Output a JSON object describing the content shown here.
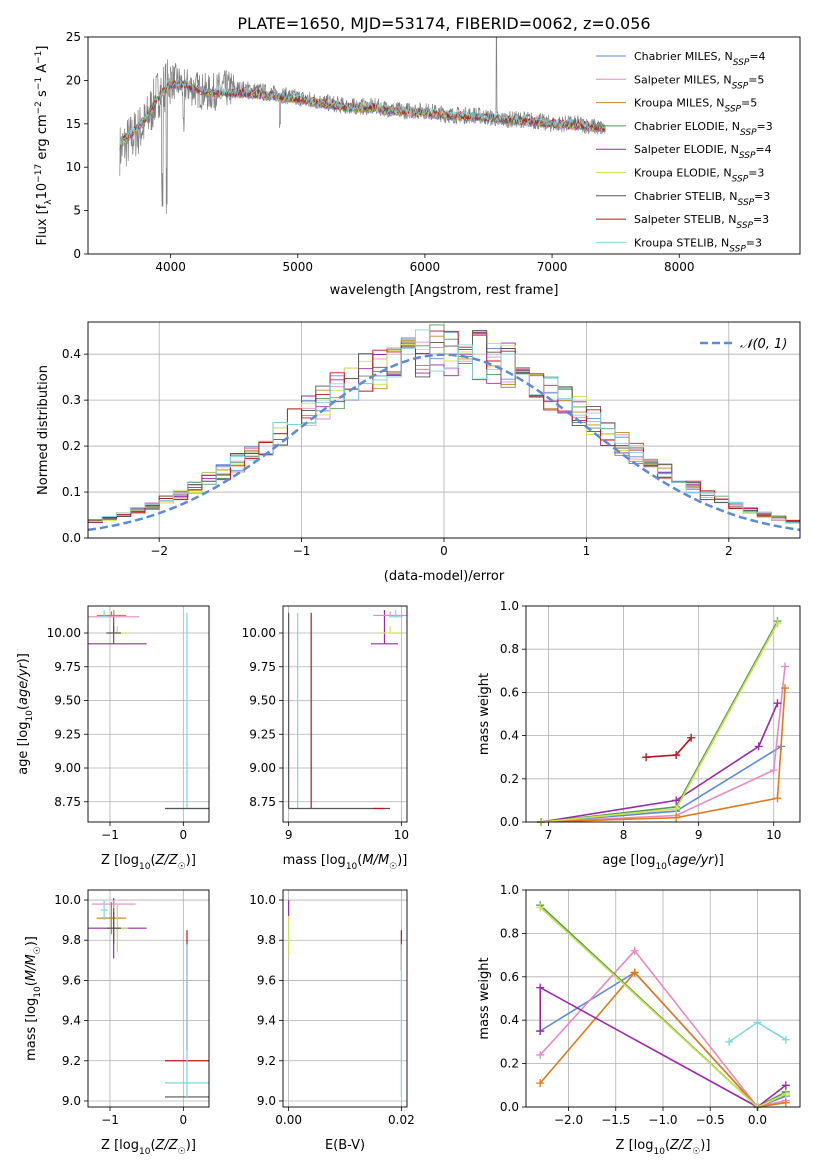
{
  "chart_data": [
    {
      "id": "spectrum",
      "type": "line",
      "title": "PLATE=1650, MJD=53174, FIBERID=0062, z=0.056",
      "xlabel": "wavelength [Angstrom, rest frame]",
      "ylabel": "Flux [f_λ10^-17 erg cm^-2 s^-1 A^-1]",
      "xlim": [
        3350,
        8950
      ],
      "ylim": [
        0,
        25
      ],
      "xticks": [
        4000,
        5000,
        6000,
        7000,
        8000
      ],
      "yticks": [
        0,
        5,
        10,
        15,
        20,
        25
      ],
      "grid": false,
      "legend_position": "top-right",
      "data_color": "#808080",
      "data_x": [
        3600,
        3700,
        3800,
        3900,
        4000,
        4100,
        4200,
        4300,
        4400,
        4600,
        4800,
        5000,
        5200,
        5400,
        5600,
        5800,
        6000,
        6200,
        6400,
        6600,
        6800,
        7000,
        7200,
        7400
      ],
      "data_y": [
        12,
        13.5,
        15,
        18.5,
        20,
        19.5,
        19,
        18.5,
        19,
        19,
        18.5,
        18,
        17.5,
        17,
        17,
        16.5,
        16.5,
        16,
        16,
        15.5,
        15.5,
        15,
        15,
        14.5
      ],
      "series": [
        {
          "name": "Chabrier MILES, N",
          "sub": "SSP",
          "eq": "=4",
          "color": "#5b8bd8"
        },
        {
          "name": "Salpeter MILES, N",
          "sub": "SSP",
          "eq": "=5",
          "color": "#e88ac2"
        },
        {
          "name": "Kroupa MILES, N",
          "sub": "SSP",
          "eq": "=5",
          "color": "#c48a1d"
        },
        {
          "name": "Chabrier ELODIE, N",
          "sub": "SSP",
          "eq": "=3",
          "color": "#559955"
        },
        {
          "name": "Salpeter ELODIE, N",
          "sub": "SSP",
          "eq": "=4",
          "color": "#9a2aa8"
        },
        {
          "name": "Kroupa ELODIE, N",
          "sub": "SSP",
          "eq": "=3",
          "color": "#cbe34d"
        },
        {
          "name": "Chabrier STELIB, N",
          "sub": "SSP",
          "eq": "=3",
          "color": "#555555"
        },
        {
          "name": "Salpeter STELIB, N",
          "sub": "SSP",
          "eq": "=3",
          "color": "#c0141a"
        },
        {
          "name": "Kroupa STELIB, N",
          "sub": "SSP",
          "eq": "=3",
          "color": "#7fd6e0"
        }
      ],
      "model_x": [
        3600,
        3700,
        3800,
        3900,
        4000,
        4100,
        4200,
        4300,
        4400,
        4600,
        4800,
        5000,
        5200,
        5400,
        5600,
        5800,
        6000,
        6200,
        6400,
        6600,
        6800,
        7000,
        7200,
        7400
      ],
      "model_y": [
        12.5,
        14,
        15.5,
        18,
        19.5,
        19.5,
        19,
        18.5,
        18.5,
        18.5,
        18.2,
        17.8,
        17.3,
        16.8,
        16.8,
        16.4,
        16.3,
        15.9,
        15.8,
        15.5,
        15.3,
        15,
        14.8,
        14.5
      ]
    },
    {
      "id": "residuals",
      "type": "step",
      "xlabel": "(data-model)/error",
      "ylabel": "Normed distribution",
      "xlim": [
        -2.5,
        2.5
      ],
      "ylim": [
        0,
        0.47
      ],
      "xticks": [
        -2,
        -1,
        0,
        1,
        2
      ],
      "yticks": [
        0.0,
        0.1,
        0.2,
        0.3,
        0.4
      ],
      "grid": true,
      "legend_position": "top-right",
      "legend": "𝒩(0, 1)",
      "gaussian": {
        "mean": 0,
        "sigma": 1,
        "color": "#5b8bd8"
      },
      "bin_width": 0.1
    },
    {
      "id": "age-vs-Z",
      "type": "errorbar",
      "xlabel": "Z [log10(Z/Z☉)]",
      "ylabel": "age [log10(age/yr)]",
      "xlim": [
        -1.3,
        0.35
      ],
      "ylim": [
        8.6,
        10.2
      ],
      "xticks": [
        -1,
        0
      ],
      "yticks": [
        8.75,
        9.0,
        9.25,
        9.5,
        9.75,
        10.0
      ],
      "grid": true,
      "points": [
        {
          "x": -0.95,
          "y": 9.92,
          "xerr": 0.45,
          "yerr": 0.25,
          "color": "#9a2aa8"
        },
        {
          "x": -0.95,
          "y": 10.12,
          "xerr": 0.35,
          "yerr": 0.05,
          "color": "#e88ac2"
        },
        {
          "x": -0.98,
          "y": 10.13,
          "xerr": 0.2,
          "yerr": 0.03,
          "color": "#c48a1d"
        },
        {
          "x": -0.9,
          "y": 10.0,
          "xerr": 0.15,
          "yerr": 0.05,
          "color": "#cbe34d"
        },
        {
          "x": -0.95,
          "y": 10.0,
          "xerr": 0.1,
          "yerr": 0.05,
          "color": "#555555"
        },
        {
          "x": -1.08,
          "y": 10.12,
          "xerr": 0.05,
          "yerr": 0.05,
          "color": "#7fd6e0"
        },
        {
          "x": 0.05,
          "y": 8.7,
          "xerr": 0.3,
          "yerr": 1.45,
          "color": "#7fd6e0"
        },
        {
          "x": 0.05,
          "y": 8.7,
          "xerr": 0.3,
          "yerr": 0.0,
          "color": "#555555"
        }
      ]
    },
    {
      "id": "age-vs-mass",
      "type": "errorbar",
      "xlabel": "mass [log10(M/M☉)]",
      "ylabel": "",
      "xlim": [
        8.95,
        10.05
      ],
      "ylim": [
        8.6,
        10.2
      ],
      "xticks": [
        9,
        10
      ],
      "yticks": [
        8.75,
        9.0,
        9.25,
        9.5,
        9.75,
        10.0
      ],
      "grid": true,
      "points": [
        {
          "x": 9.0,
          "y": 8.7,
          "xerr": 0.0,
          "yerr": 1.45,
          "color": "#555555"
        },
        {
          "x": 9.08,
          "y": 8.7,
          "xerr": 0.0,
          "yerr": 1.45,
          "color": "#7fd6e0"
        },
        {
          "x": 9.2,
          "y": 8.7,
          "xerr": 0.0,
          "yerr": 1.45,
          "color": "#c0141a"
        },
        {
          "x": 9.45,
          "y": 8.7,
          "xerr": 0.45,
          "yerr": 0.0,
          "color": "#555555"
        },
        {
          "x": 9.8,
          "y": 8.7,
          "xerr": 0.05,
          "yerr": 0.0,
          "color": "#c0141a"
        },
        {
          "x": 9.85,
          "y": 9.92,
          "xerr": 0.12,
          "yerr": 0.25,
          "color": "#9a2aa8"
        },
        {
          "x": 9.9,
          "y": 10.13,
          "xerr": 0.15,
          "yerr": 0.03,
          "color": "#e88ac2"
        },
        {
          "x": 9.9,
          "y": 10.0,
          "xerr": 0.1,
          "yerr": 0.05,
          "color": "#cbe34d"
        },
        {
          "x": 9.95,
          "y": 10.12,
          "xerr": 0.06,
          "yerr": 0.05,
          "color": "#7fd6e0"
        }
      ]
    },
    {
      "id": "mass-weight-vs-age",
      "type": "line",
      "xlabel": "age [log10(age/yr)]",
      "ylabel": "mass weight",
      "xlim": [
        6.7,
        10.35
      ],
      "ylim": [
        0,
        1.0
      ],
      "xticks": [
        7,
        8,
        9,
        10
      ],
      "yticks": [
        0.0,
        0.2,
        0.4,
        0.6,
        0.8,
        1.0
      ],
      "grid": true,
      "series": [
        {
          "color": "#5b8bd8",
          "x": [
            6.9,
            8.7,
            10.1
          ],
          "y": [
            0.0,
            0.05,
            0.35
          ]
        },
        {
          "color": "#e88ac2",
          "x": [
            6.9,
            8.7,
            10.0,
            10.15
          ],
          "y": [
            0.0,
            0.03,
            0.24,
            0.72
          ]
        },
        {
          "color": "#e07b1d",
          "x": [
            6.9,
            8.7,
            10.05,
            10.15
          ],
          "y": [
            0.0,
            0.02,
            0.11,
            0.62
          ]
        },
        {
          "color": "#559955",
          "x": [
            6.9,
            8.7,
            10.05
          ],
          "y": [
            0.0,
            0.07,
            0.93
          ]
        },
        {
          "color": "#9a2aa8",
          "x": [
            6.9,
            8.7,
            9.8,
            10.05
          ],
          "y": [
            0.0,
            0.1,
            0.35,
            0.55
          ]
        },
        {
          "color": "#cbe34d",
          "x": [
            6.9,
            8.7,
            10.05
          ],
          "y": [
            0.0,
            0.06,
            0.92
          ]
        },
        {
          "color": "#7fd6e0",
          "x": [
            8.3,
            8.7,
            8.9
          ],
          "y": [
            0.3,
            0.31,
            0.39
          ]
        },
        {
          "color": "#c0141a",
          "x": [
            8.3,
            8.7,
            8.9
          ],
          "y": [
            0.3,
            0.31,
            0.39
          ]
        }
      ]
    },
    {
      "id": "mass-vs-Z",
      "type": "errorbar",
      "xlabel": "Z [log10(Z/Z☉)]",
      "ylabel": "mass [log10(M/M☉)]",
      "xlim": [
        -1.3,
        0.35
      ],
      "ylim": [
        8.97,
        10.05
      ],
      "xticks": [
        -1,
        0
      ],
      "yticks": [
        9.0,
        9.2,
        9.4,
        9.6,
        9.8,
        10.0
      ],
      "grid": true,
      "points": [
        {
          "x": -0.95,
          "y": 9.86,
          "xerr": 0.45,
          "yerr": 0.15,
          "color": "#9a2aa8"
        },
        {
          "x": -0.95,
          "y": 9.98,
          "xerr": 0.3,
          "yerr": 0.02,
          "color": "#e88ac2"
        },
        {
          "x": -0.98,
          "y": 9.91,
          "xerr": 0.2,
          "yerr": 0.08,
          "color": "#c48a1d"
        },
        {
          "x": -0.9,
          "y": 9.86,
          "xerr": 0.15,
          "yerr": 0.12,
          "color": "#cbe34d"
        },
        {
          "x": -0.95,
          "y": 9.86,
          "xerr": 0.1,
          "yerr": 0.08,
          "color": "#555555"
        },
        {
          "x": -1.08,
          "y": 9.95,
          "xerr": 0.05,
          "yerr": 0.05,
          "color": "#7fd6e0"
        },
        {
          "x": 0.05,
          "y": 9.2,
          "xerr": 0.3,
          "yerr": 0.0,
          "color": "#c0141a"
        },
        {
          "x": 0.05,
          "y": 9.09,
          "xerr": 0.3,
          "yerr": 0.0,
          "color": "#7fd6e0"
        },
        {
          "x": 0.05,
          "y": 9.02,
          "xerr": 0.3,
          "yerr": 0.0,
          "color": "#555555"
        },
        {
          "x": 0.05,
          "y": 9.55,
          "xerr": 0.0,
          "yerr": 0.3,
          "color": "#c0141a"
        },
        {
          "x": 0.05,
          "y": 9.4,
          "xerr": 0.0,
          "yerr": 0.38,
          "color": "#7fd6e0"
        }
      ]
    },
    {
      "id": "mass-vs-EBV",
      "type": "errorbar",
      "xlabel": "E(B-V)",
      "ylabel": "",
      "xlim": [
        -0.001,
        0.021
      ],
      "ylim": [
        8.97,
        10.05
      ],
      "xticks": [
        0.0,
        0.02
      ],
      "xtick_labels": [
        "0.00",
        "0.02"
      ],
      "yticks": [
        9.0,
        9.2,
        9.4,
        9.6,
        9.8,
        10.0
      ],
      "grid": true,
      "points": [
        {
          "x": 0.0,
          "y": 9.96,
          "xerr": 0.0,
          "yerr": 0.04,
          "color": "#9a2aa8"
        },
        {
          "x": 0.0,
          "y": 9.82,
          "xerr": 0.0,
          "yerr": 0.1,
          "color": "#cbe34d"
        },
        {
          "x": 0.02,
          "y": 9.75,
          "xerr": 0.0,
          "yerr": 0.1,
          "color": "#c0141a"
        },
        {
          "x": 0.02,
          "y": 9.4,
          "xerr": 0.0,
          "yerr": 0.38,
          "color": "#7fd6e0"
        }
      ]
    },
    {
      "id": "mass-weight-vs-Z",
      "type": "line",
      "xlabel": "Z [log10(Z/Z☉)]",
      "ylabel": "mass weight",
      "xlim": [
        -2.45,
        0.45
      ],
      "ylim": [
        0,
        1.0
      ],
      "xticks": [
        -2.0,
        -1.5,
        -1.0,
        -0.5,
        0.0
      ],
      "xtick_labels": [
        "−2.0",
        "−1.5",
        "−1.0",
        "−0.5",
        "0.0"
      ],
      "yticks": [
        0.0,
        0.2,
        0.4,
        0.6,
        0.8,
        1.0
      ],
      "grid": true,
      "series": [
        {
          "color": "#5b8bd8",
          "x": [
            -2.3,
            -1.3,
            0.0,
            0.3
          ],
          "y": [
            0.35,
            0.62,
            0.0,
            0.05
          ]
        },
        {
          "color": "#e88ac2",
          "x": [
            -2.3,
            -1.3,
            0.0,
            0.3
          ],
          "y": [
            0.24,
            0.72,
            0.0,
            0.03
          ]
        },
        {
          "color": "#e07b1d",
          "x": [
            -2.3,
            -1.3,
            0.0,
            0.3
          ],
          "y": [
            0.11,
            0.62,
            0.0,
            0.02
          ]
        },
        {
          "color": "#559955",
          "x": [
            -2.3,
            0.0,
            0.3
          ],
          "y": [
            0.93,
            0.0,
            0.07
          ]
        },
        {
          "color": "#9a2aa8",
          "x": [
            -2.3,
            -2.3,
            0.0,
            0.3
          ],
          "y": [
            0.35,
            0.55,
            0.0,
            0.1
          ]
        },
        {
          "color": "#cbe34d",
          "x": [
            -2.3,
            0.0,
            0.3
          ],
          "y": [
            0.92,
            0.0,
            0.06
          ]
        },
        {
          "color": "#7fd6e0",
          "x": [
            -0.3,
            0.0,
            0.3
          ],
          "y": [
            0.3,
            0.39,
            0.31
          ]
        }
      ]
    }
  ]
}
